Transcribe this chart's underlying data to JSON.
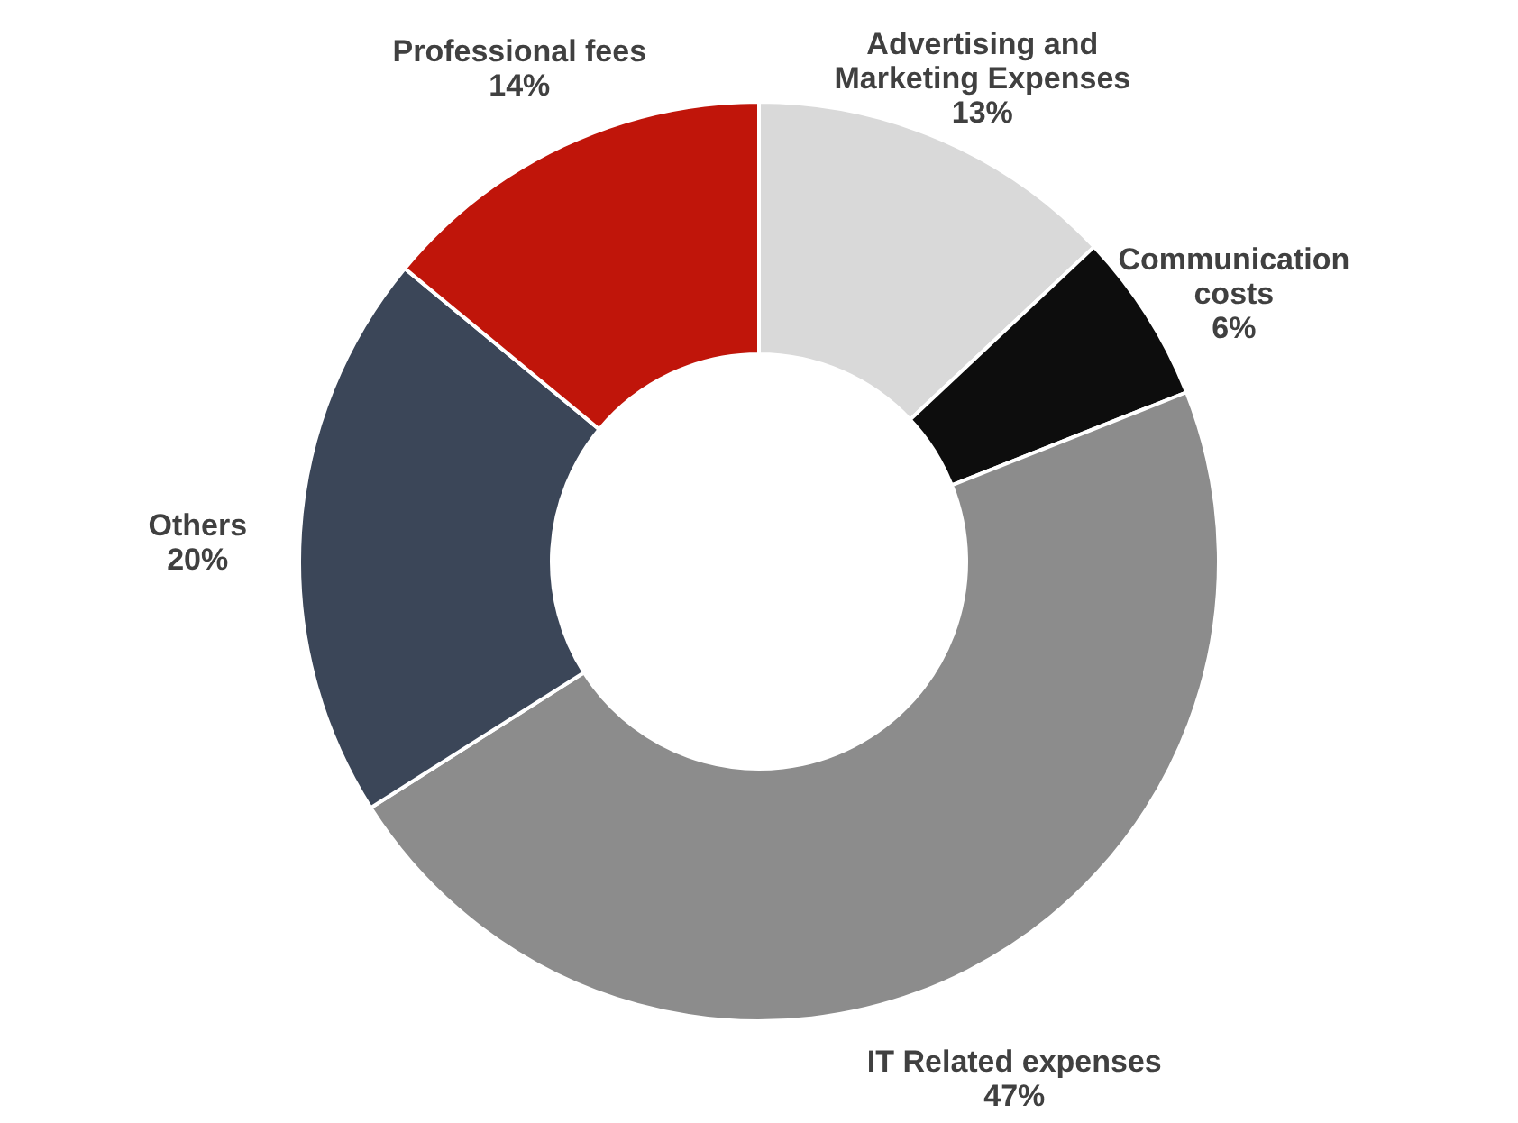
{
  "chart_data": {
    "type": "donut",
    "categories": [
      "Advertising and\nMarketing Expenses",
      "Communication\ncosts",
      "IT Related expenses",
      "Others",
      "Professional fees"
    ],
    "values": [
      13,
      6,
      47,
      20,
      14
    ],
    "value_labels": [
      "13%",
      "6%",
      "47%",
      "20%",
      "14%"
    ],
    "colors": [
      "#d9d9d9",
      "#0d0d0d",
      "#8c8c8c",
      "#3b4658",
      "#c0150a"
    ],
    "legend": false
  }
}
